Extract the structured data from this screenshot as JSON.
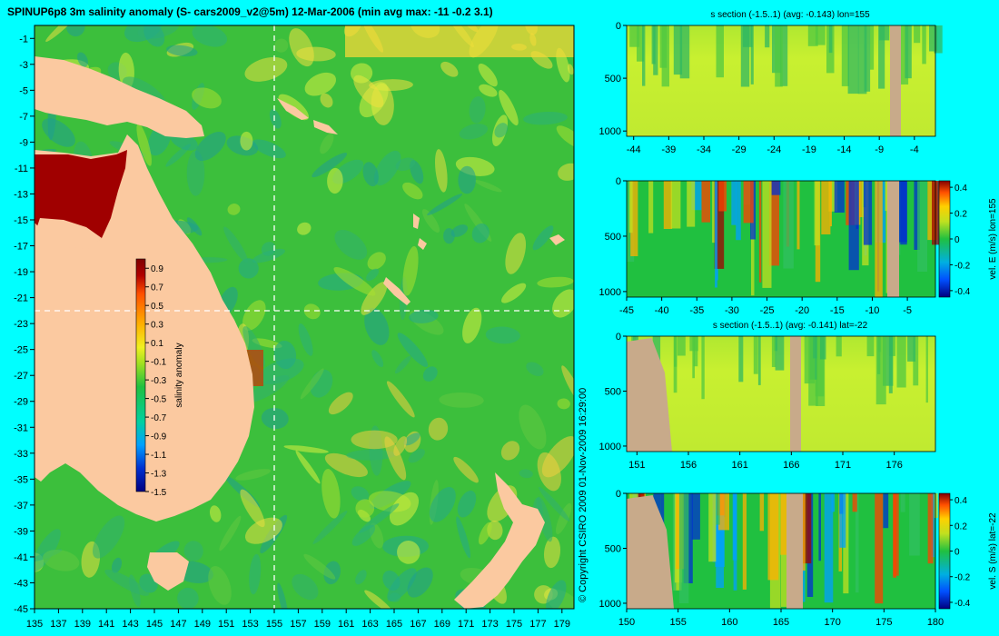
{
  "colors": {
    "background": "#00ffff",
    "land": "#fbc9a0",
    "section_land": "#c8aa8a",
    "ocean_base": "#3cbf3c",
    "teal_eddy": "#22aa8a",
    "yellow_eddy": "#d8f040",
    "colormap": [
      "#000080",
      "#0030d0",
      "#00a0ff",
      "#00d0a0",
      "#20c040",
      "#a0e020",
      "#f0f020",
      "#ffb000",
      "#ff5000",
      "#b00000",
      "#800000"
    ]
  },
  "main_map": {
    "title": "SPINUP6p8 3m salinity anomaly (S- cars2009_v2@5m) 12-Mar-2006 (min avg max: -11 -0.2 3.1)",
    "x_ticks": [
      "135",
      "137",
      "139",
      "141",
      "143",
      "145",
      "147",
      "149",
      "151",
      "153",
      "155",
      "157",
      "159",
      "161",
      "163",
      "165",
      "167",
      "169",
      "171",
      "173",
      "175",
      "177",
      "179"
    ],
    "y_ticks": [
      "-1",
      "-3",
      "-5",
      "-7",
      "-9",
      "-11",
      "-13",
      "-15",
      "-17",
      "-19",
      "-21",
      "-23",
      "-25",
      "-27",
      "-29",
      "-31",
      "-33",
      "-35",
      "-37",
      "-39",
      "-41",
      "-43",
      "-45"
    ],
    "colorbar": {
      "label": "salinity anomaly",
      "ticks": [
        "0.9",
        "0.7",
        "0.5",
        "0.3",
        "0.1",
        "-0.1",
        "-0.3",
        "-0.5",
        "-0.7",
        "-0.9",
        "-1.1",
        "-1.3",
        "-1.5"
      ]
    },
    "copyright": "© Copyright CSIRO 2009   01-Nov-2009 16:29:00"
  },
  "chart_data": [
    {
      "type": "heatmap",
      "title": "SPINUP6p8 3m salinity anomaly (S- cars2009_v2@5m) 12-Mar-2006 (min avg max: -11 -0.2 3.1)",
      "xlim": [
        135,
        180
      ],
      "ylim": [
        -45,
        0
      ],
      "clim": [
        -1.5,
        1.0
      ],
      "stats": {
        "min": -11,
        "avg": -0.2,
        "max": 3.1
      },
      "section_lines": {
        "lon": 155,
        "lat": -22
      }
    },
    {
      "type": "heatmap",
      "title": "s section (-1.5..1) (avg: -0.143) lon=155",
      "x_ticks": [
        "-44",
        "-39",
        "-34",
        "-29",
        "-24",
        "-19",
        "-14",
        "-9",
        "-4"
      ],
      "y_ticks": [
        "0",
        "500",
        "1000"
      ],
      "xlim": [
        -45,
        -1
      ],
      "ylim": [
        1050,
        0
      ]
    },
    {
      "type": "heatmap",
      "title": "",
      "x_ticks": [
        "-45",
        "-40",
        "-35",
        "-30",
        "-25",
        "-20",
        "-15",
        "-10",
        "-5"
      ],
      "y_ticks": [
        "0",
        "500",
        "1000"
      ],
      "xlim": [
        -45,
        -1
      ],
      "ylim": [
        1050,
        0
      ],
      "colorbar": {
        "label": "vel. E (m/s) lon=155",
        "ticks": [
          "0.4",
          "0.2",
          "0",
          "-0.2",
          "-0.4"
        ]
      }
    },
    {
      "type": "heatmap",
      "title": "s section (-1.5..1) (avg: -0.141) lat=-22",
      "x_ticks": [
        "151",
        "156",
        "161",
        "166",
        "171",
        "176"
      ],
      "y_ticks": [
        "0",
        "500",
        "1000"
      ],
      "xlim": [
        150,
        180
      ],
      "ylim": [
        1050,
        0
      ]
    },
    {
      "type": "heatmap",
      "title": "",
      "x_ticks": [
        "150",
        "155",
        "160",
        "165",
        "170",
        "175",
        "180"
      ],
      "y_ticks": [
        "0",
        "500",
        "1000"
      ],
      "xlim": [
        150,
        180
      ],
      "ylim": [
        1050,
        0
      ],
      "colorbar": {
        "label": "vel. S (m/s) lat=-22",
        "ticks": [
          "0.4",
          "0.2",
          "0",
          "-0.2",
          "-0.4"
        ]
      }
    }
  ]
}
